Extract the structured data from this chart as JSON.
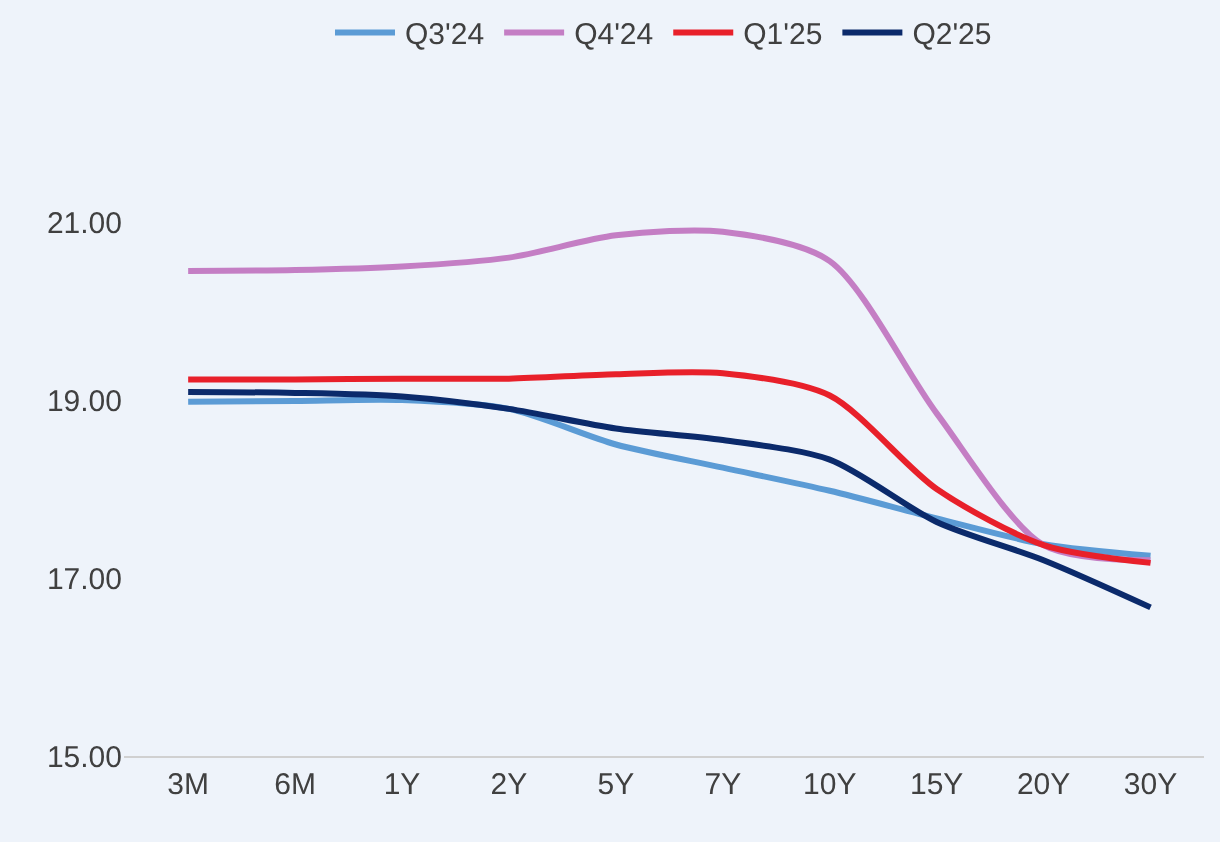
{
  "chart_data": {
    "type": "line",
    "categories": [
      "3M",
      "6M",
      "1Y",
      "2Y",
      "5Y",
      "7Y",
      "10Y",
      "15Y",
      "20Y",
      "30Y"
    ],
    "series": [
      {
        "name": "Q3'24",
        "color": "#5b9bd5",
        "values": [
          18.98,
          18.99,
          19.0,
          18.9,
          18.5,
          18.24,
          17.98,
          17.67,
          17.38,
          17.25
        ]
      },
      {
        "name": "Q4'24",
        "color": "#c47ec4",
        "values": [
          20.45,
          20.46,
          20.5,
          20.6,
          20.85,
          20.89,
          20.56,
          18.85,
          17.37,
          17.2
        ]
      },
      {
        "name": "Q1'25",
        "color": "#e8202a",
        "values": [
          19.23,
          19.23,
          19.24,
          19.24,
          19.29,
          19.3,
          19.05,
          18.0,
          17.37,
          17.17
        ]
      },
      {
        "name": "Q2'25",
        "color": "#0b2a6b",
        "values": [
          19.09,
          19.08,
          19.04,
          18.9,
          18.68,
          18.55,
          18.33,
          17.63,
          17.2,
          16.67
        ]
      }
    ],
    "ylim": [
      15,
      21
    ],
    "yticks": [
      {
        "value": 15,
        "label": "15.00"
      },
      {
        "value": 17,
        "label": "17.00"
      },
      {
        "value": 19,
        "label": "19.00"
      },
      {
        "value": 21,
        "label": "21.00"
      }
    ],
    "grid": false,
    "legend": "top",
    "marker": "none",
    "line_style": "solid"
  }
}
